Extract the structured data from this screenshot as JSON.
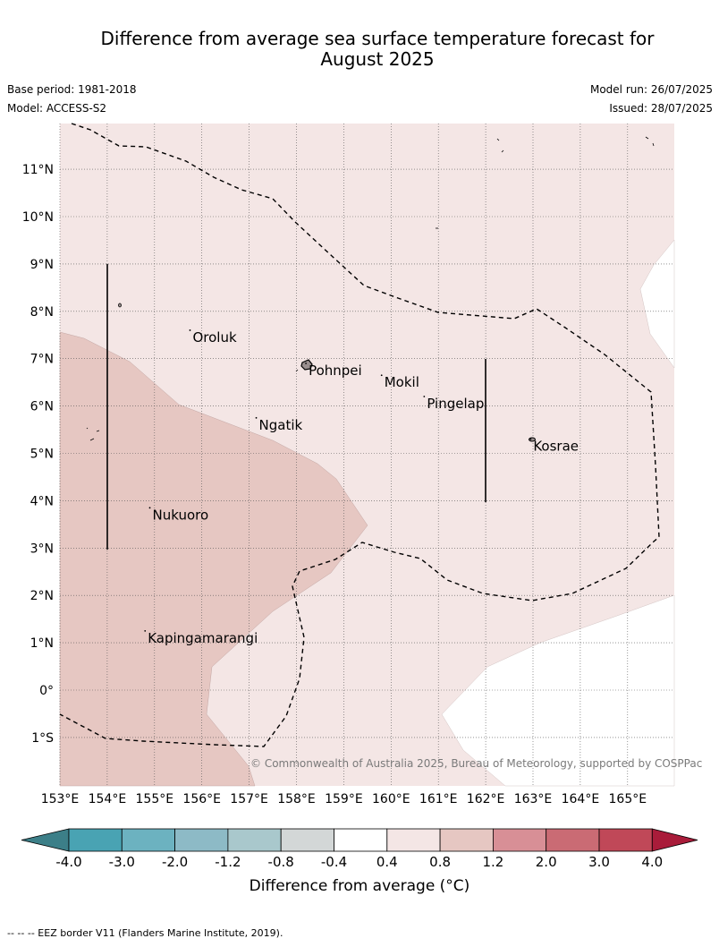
{
  "title_line1": "Difference from average sea surface temperature forecast for",
  "title_line2": "August 2025",
  "base_period": "Base period: 1981-2018",
  "model": "Model: ACCESS-S2",
  "model_run": "Model run: 26/07/2025",
  "issued": "Issued: 28/07/2025",
  "copyright": "© Commonwealth of Australia 2025, Bureau of Meteorology, supported by COSPPac",
  "lon_labels": [
    "153°E",
    "154°E",
    "155°E",
    "156°E",
    "157°E",
    "158°E",
    "159°E",
    "160°E",
    "161°E",
    "162°E",
    "163°E",
    "164°E",
    "165°E"
  ],
  "lat_labels": [
    "11°N",
    "10°N",
    "9°N",
    "8°N",
    "7°N",
    "6°N",
    "5°N",
    "4°N",
    "3°N",
    "2°N",
    "1°N",
    "0°",
    "1°S"
  ],
  "places": [
    {
      "name": "Oroluk",
      "lon": 155.75,
      "lat": 7.6
    },
    {
      "name": "Pohnpei",
      "lon": 158.2,
      "lat": 6.9
    },
    {
      "name": "Mokil",
      "lon": 159.8,
      "lat": 6.65
    },
    {
      "name": "Pingelap",
      "lon": 160.7,
      "lat": 6.2
    },
    {
      "name": "Ngatik",
      "lon": 157.15,
      "lat": 5.75
    },
    {
      "name": "Kosrae",
      "lon": 162.95,
      "lat": 5.3
    },
    {
      "name": "Nukuoro",
      "lon": 154.9,
      "lat": 3.85
    },
    {
      "name": "Kapingamarangi",
      "lon": 154.8,
      "lat": 1.25
    }
  ],
  "colorbar": {
    "ticks": [
      "-4.0",
      "-3.0",
      "-2.0",
      "-1.2",
      "-0.8",
      "-0.4",
      "0.4",
      "0.8",
      "1.2",
      "2.0",
      "3.0",
      "4.0"
    ],
    "colors": [
      "#49a3b3",
      "#6cb2c0",
      "#8dbac6",
      "#a9c8cc",
      "#d3d7d7",
      "#ffffff",
      "#f4e6e5",
      "#e6c7c2",
      "#d88f96",
      "#ca6b74",
      "#c04858"
    ],
    "under_color": "#3c7f88",
    "over_color": "#a91c3a",
    "label": "Difference from average (°C)"
  },
  "footnote": "--  --  -- EEZ border V11 (Flanders Marine Institute, 2019)."
}
